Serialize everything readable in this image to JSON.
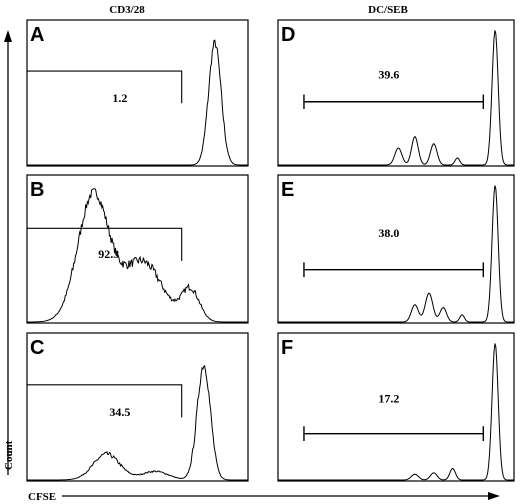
{
  "column_titles": [
    "CD3/28",
    "DC/SEB"
  ],
  "axis": {
    "x_label": "CFSE",
    "y_label": "Count"
  },
  "chart_data": [
    {
      "type": "area",
      "panel": "A",
      "column": "CD3/28",
      "gate_label": "1.2",
      "peaks": [
        {
          "center": 0.85,
          "width": 0.028,
          "height": 0.86
        }
      ]
    },
    {
      "type": "area",
      "panel": "B",
      "column": "CD3/28",
      "gate_label": "92.3",
      "peaks": [
        {
          "center": 0.3,
          "width": 0.07,
          "height": 0.88
        },
        {
          "center": 0.52,
          "width": 0.09,
          "height": 0.42
        },
        {
          "center": 0.74,
          "width": 0.04,
          "height": 0.22
        }
      ]
    },
    {
      "type": "area",
      "panel": "C",
      "column": "CD3/28",
      "gate_label": "34.5",
      "peaks": [
        {
          "center": 0.36,
          "width": 0.06,
          "height": 0.18
        },
        {
          "center": 0.58,
          "width": 0.06,
          "height": 0.06
        },
        {
          "center": 0.8,
          "width": 0.03,
          "height": 0.8
        }
      ]
    },
    {
      "type": "area",
      "panel": "D",
      "column": "DC/SEB",
      "gate_label": "39.6",
      "peaks": [
        {
          "center": 0.58,
          "width": 0.014,
          "height": 0.2
        },
        {
          "center": 0.66,
          "width": 0.014,
          "height": 0.15
        },
        {
          "center": 0.51,
          "width": 0.015,
          "height": 0.12
        },
        {
          "center": 0.76,
          "width": 0.01,
          "height": 0.05
        },
        {
          "center": 0.92,
          "width": 0.013,
          "height": 0.95
        }
      ]
    },
    {
      "type": "area",
      "panel": "E",
      "column": "DC/SEB",
      "gate_label": "38.0",
      "peaks": [
        {
          "center": 0.64,
          "width": 0.016,
          "height": 0.2
        },
        {
          "center": 0.58,
          "width": 0.015,
          "height": 0.12
        },
        {
          "center": 0.7,
          "width": 0.014,
          "height": 0.1
        },
        {
          "center": 0.78,
          "width": 0.01,
          "height": 0.05
        },
        {
          "center": 0.92,
          "width": 0.013,
          "height": 0.95
        }
      ]
    },
    {
      "type": "area",
      "panel": "F",
      "column": "DC/SEB",
      "gate_label": "17.2",
      "peaks": [
        {
          "center": 0.58,
          "width": 0.015,
          "height": 0.04
        },
        {
          "center": 0.66,
          "width": 0.014,
          "height": 0.05
        },
        {
          "center": 0.74,
          "width": 0.012,
          "height": 0.08
        },
        {
          "center": 0.92,
          "width": 0.013,
          "height": 0.95
        }
      ]
    }
  ]
}
